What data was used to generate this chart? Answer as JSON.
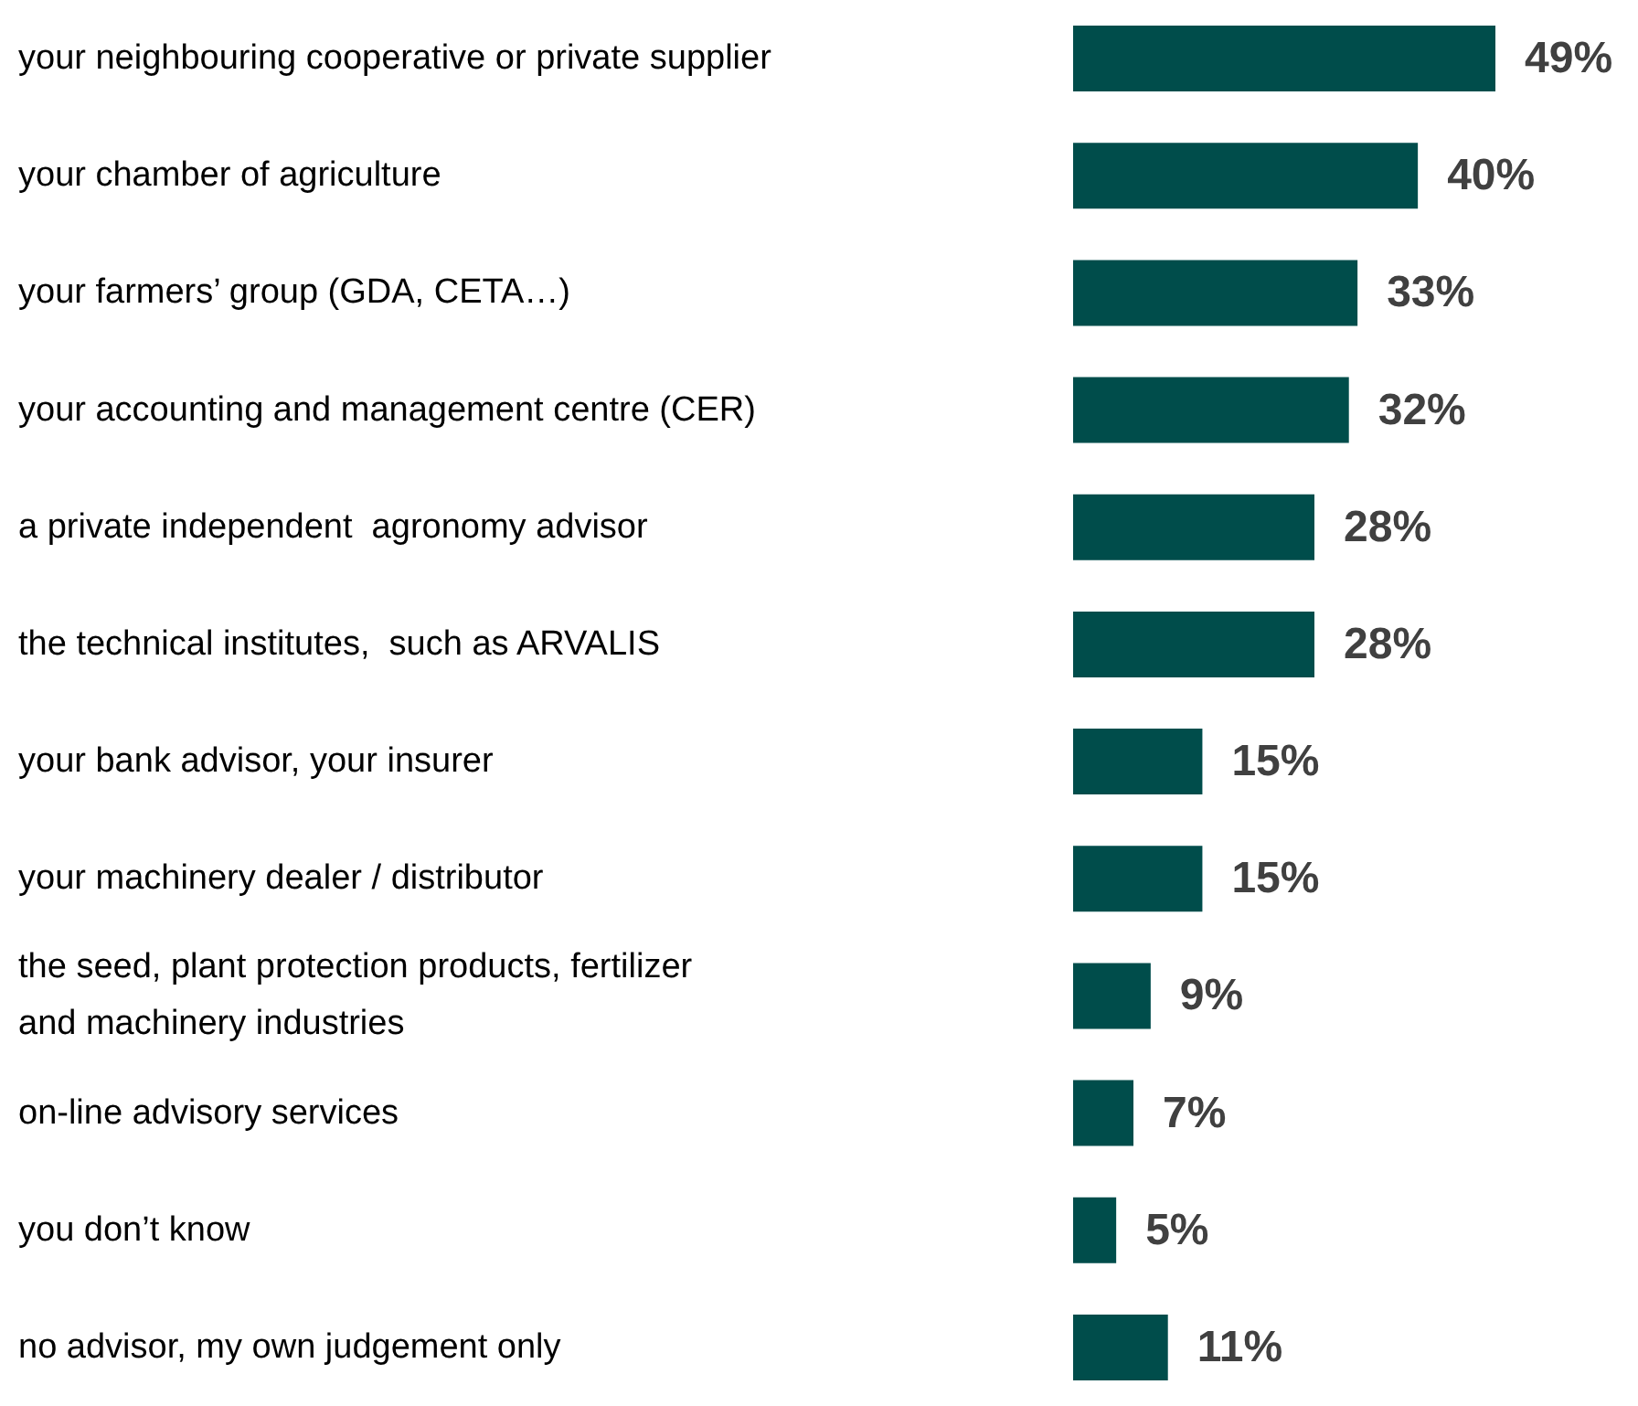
{
  "chart_data": {
    "type": "bar",
    "orientation": "horizontal",
    "categories": [
      "your neighbouring cooperative or private supplier",
      "your chamber of agriculture",
      "your farmers’ group (GDA, CETA…)",
      "your accounting and management centre (CER)",
      "a private independent  agronomy advisor",
      "the technical institutes,  such as ARVALIS",
      "your bank advisor, your insurer",
      "your machinery dealer / distributor",
      "the seed, plant protection products, fertilizer\nand machinery industries",
      "on-line advisory services",
      "you don’t know",
      "no advisor, my own judgement only"
    ],
    "values": [
      49,
      40,
      33,
      32,
      28,
      28,
      15,
      15,
      9,
      7,
      5,
      11
    ],
    "value_labels": [
      "49%",
      "40%",
      "33%",
      "32%",
      "28%",
      "28%",
      "15%",
      "15%",
      "9%",
      "7%",
      "5%",
      "11%"
    ],
    "color": "#004d4b"
  }
}
